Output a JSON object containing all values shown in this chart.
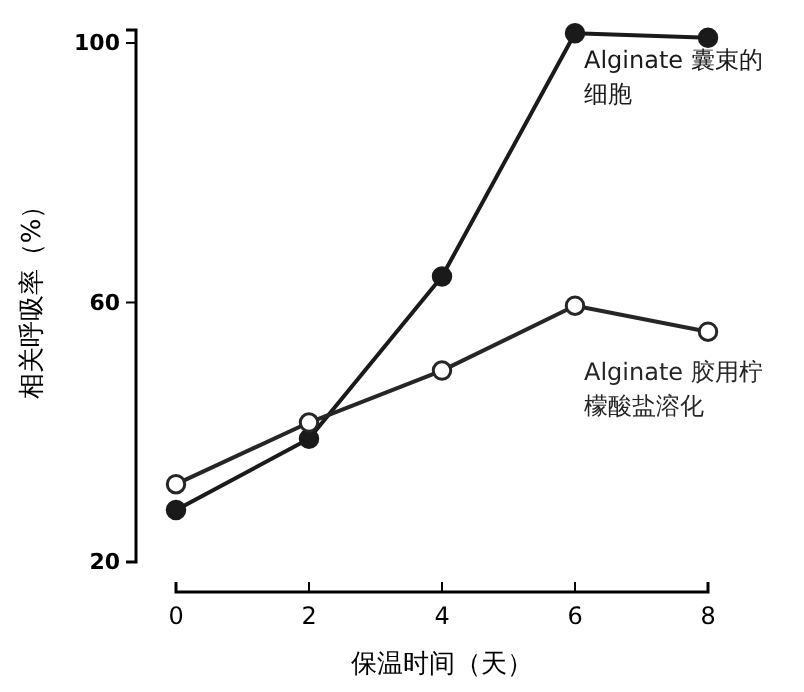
{
  "chart_data": {
    "type": "line",
    "xlabel": "保温时间（天）",
    "ylabel": "相关呼吸率（%）",
    "x": [
      0,
      2,
      4,
      6,
      8
    ],
    "xlim": [
      0,
      8
    ],
    "xticks": [
      0,
      2,
      4,
      6,
      8
    ],
    "ylim": [
      20,
      102
    ],
    "yticks": [
      20,
      60,
      100
    ],
    "marker": "circle",
    "line_style": "solid",
    "grid": false,
    "legend": false,
    "series": [
      {
        "name": "Alginate 囊束的细胞",
        "color": "#1a1a1a",
        "values": [
          28,
          39,
          64,
          101.5,
          100.8
        ]
      },
      {
        "name": "Alginate 胶用柠檬酸盐溶化",
        "color": "#262626",
        "values": [
          32,
          41.5,
          49.5,
          59.5,
          55.5
        ]
      }
    ]
  }
}
